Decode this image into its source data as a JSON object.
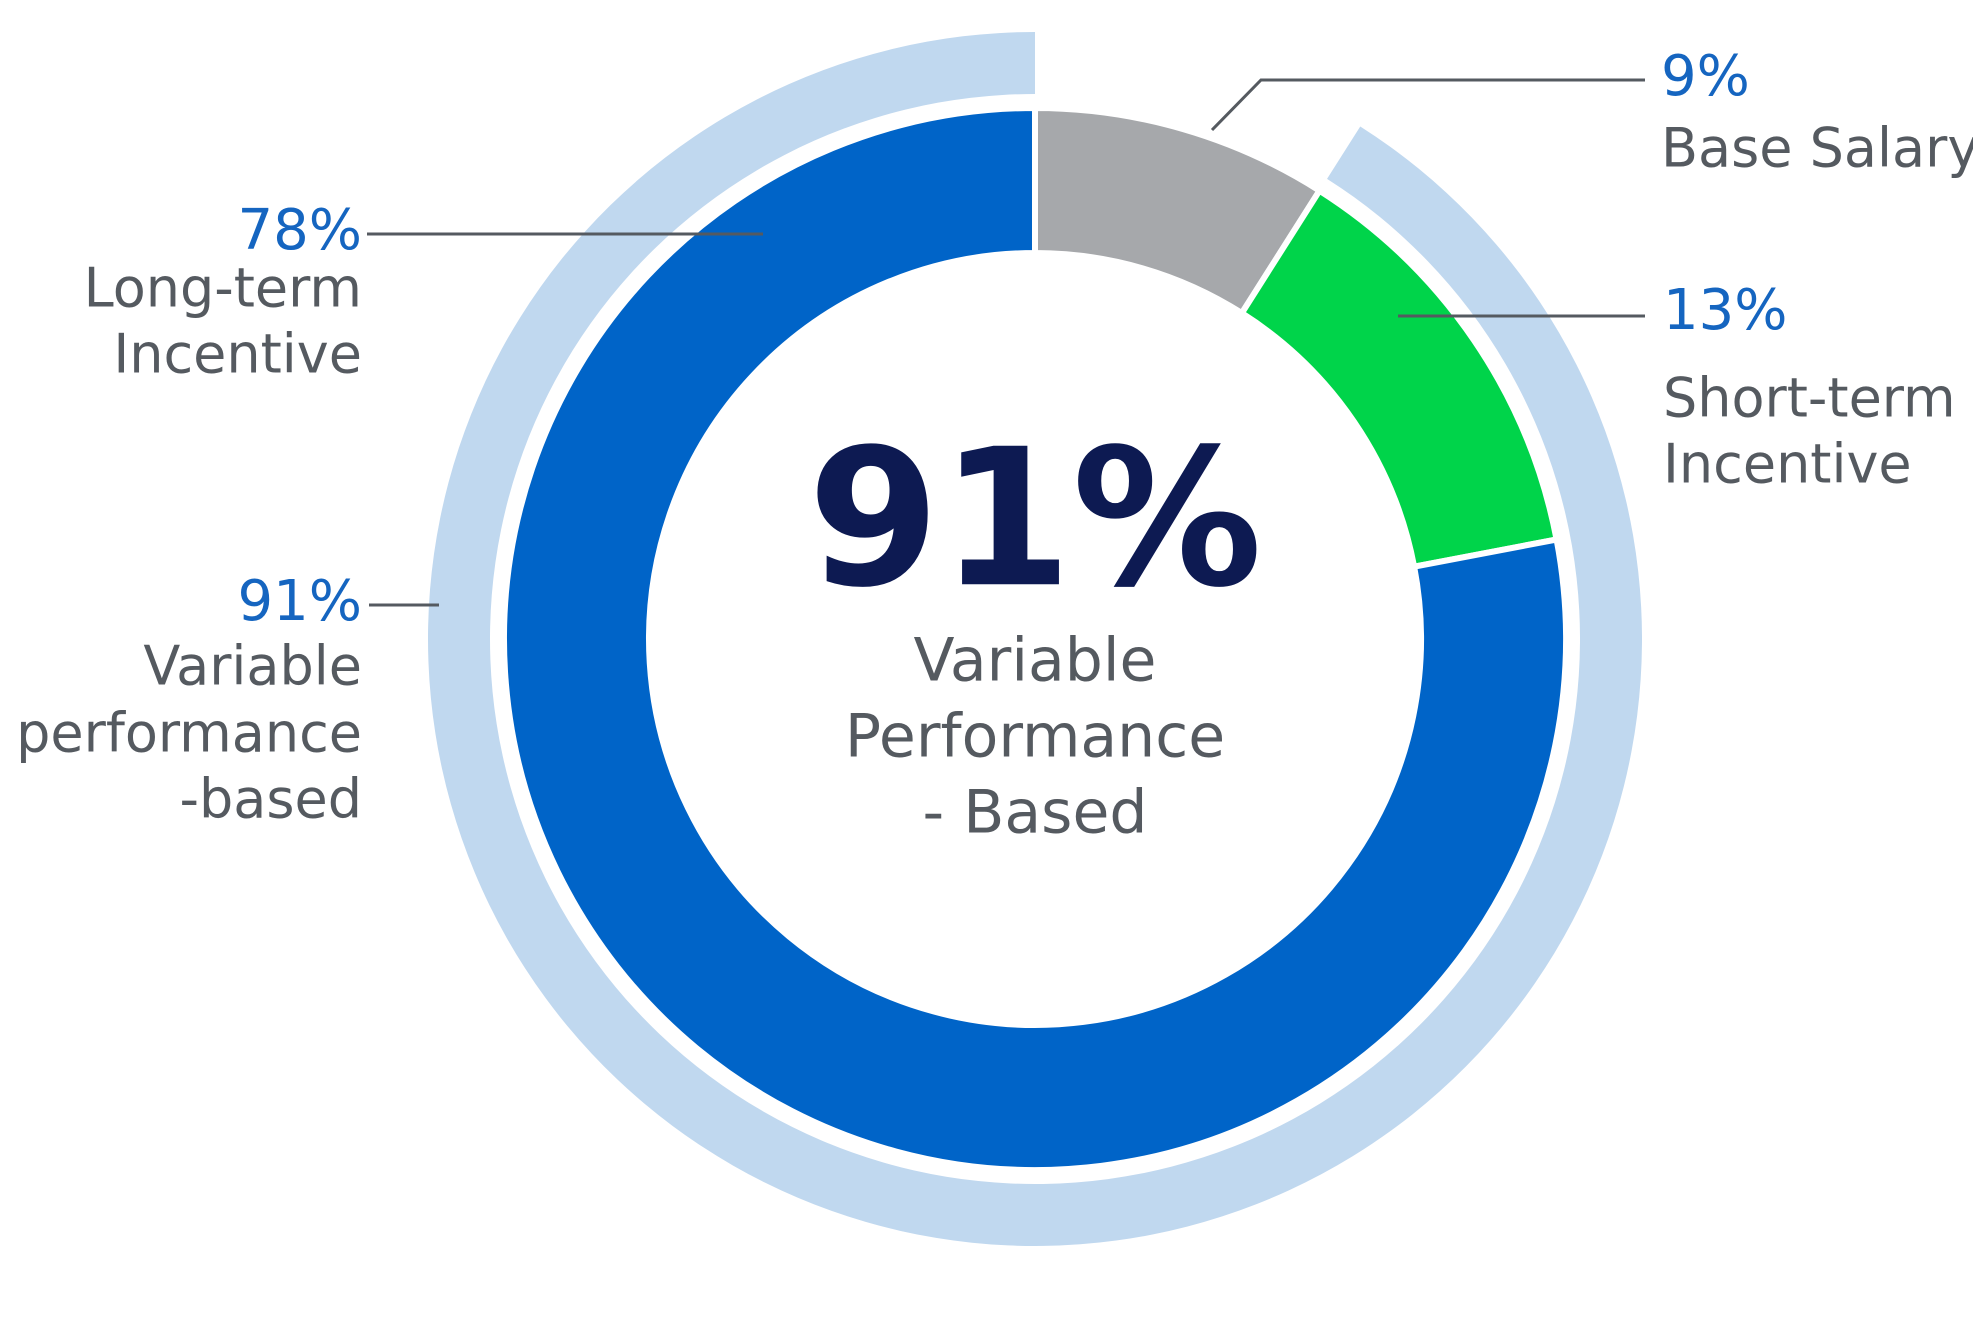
{
  "chart_data": {
    "type": "donut",
    "labels": [
      [
        "Base Salary"
      ],
      [
        "Short-term",
        "Incentive"
      ],
      [
        "Long-term",
        "Incentive"
      ]
    ],
    "values": [
      9,
      13,
      78
    ],
    "value_labels": [
      "9%",
      "13%",
      "78%"
    ],
    "colors": [
      "#a6a8ab",
      "#00d44a",
      "#0064c8"
    ],
    "outer": {
      "labels": [
        [
          "Variable",
          "performance",
          "-based"
        ]
      ],
      "values": [
        91
      ],
      "value_labels": [
        "91%"
      ],
      "color": "#c0d8ef"
    },
    "center_text": [
      "Variable",
      "Performance",
      "- Based"
    ]
  }
}
